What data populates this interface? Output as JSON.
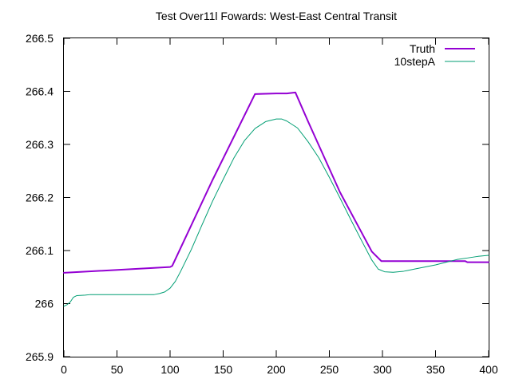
{
  "chart_data": {
    "type": "line",
    "title": "Test Over11l Fowards: West-East Central Transit",
    "xlabel": "",
    "ylabel": "",
    "xlim": [
      0,
      400
    ],
    "ylim": [
      265.9,
      266.5
    ],
    "x_ticks": [
      "0",
      "50",
      "100",
      "150",
      "200",
      "250",
      "300",
      "350",
      "400"
    ],
    "y_ticks": [
      "265.9",
      "266",
      "266.1",
      "266.2",
      "266.3",
      "266.4",
      "266.5"
    ],
    "grid": false,
    "legend_position": "top-right",
    "series": [
      {
        "name": "Truth",
        "color": "#9400d3",
        "points": [
          [
            0,
            266.058
          ],
          [
            100,
            266.069
          ],
          [
            102,
            266.071
          ],
          [
            140,
            266.233
          ],
          [
            180,
            266.395
          ],
          [
            200,
            266.396
          ],
          [
            210,
            266.396
          ],
          [
            218,
            266.398
          ],
          [
            230,
            266.343
          ],
          [
            260,
            266.21
          ],
          [
            290,
            266.098
          ],
          [
            299,
            266.08
          ],
          [
            340,
            266.08
          ],
          [
            378,
            266.08
          ],
          [
            380,
            266.078
          ],
          [
            400,
            266.078
          ]
        ]
      },
      {
        "name": "10stepA",
        "color": "#009e73",
        "points": [
          [
            0,
            265.995
          ],
          [
            3,
            265.998
          ],
          [
            6,
            266.003
          ],
          [
            9,
            266.012
          ],
          [
            12,
            266.015
          ],
          [
            20,
            266.016
          ],
          [
            25,
            266.017
          ],
          [
            40,
            266.017
          ],
          [
            60,
            266.017
          ],
          [
            85,
            266.017
          ],
          [
            90,
            266.019
          ],
          [
            95,
            266.022
          ],
          [
            100,
            266.029
          ],
          [
            105,
            266.042
          ],
          [
            110,
            266.061
          ],
          [
            120,
            266.102
          ],
          [
            130,
            266.148
          ],
          [
            140,
            266.193
          ],
          [
            150,
            266.234
          ],
          [
            160,
            266.274
          ],
          [
            170,
            266.307
          ],
          [
            180,
            266.33
          ],
          [
            190,
            266.343
          ],
          [
            200,
            266.348
          ],
          [
            205,
            266.348
          ],
          [
            210,
            266.344
          ],
          [
            220,
            266.331
          ],
          [
            230,
            266.305
          ],
          [
            240,
            266.275
          ],
          [
            250,
            266.238
          ],
          [
            260,
            266.199
          ],
          [
            270,
            266.159
          ],
          [
            280,
            266.12
          ],
          [
            290,
            266.082
          ],
          [
            296,
            266.065
          ],
          [
            302,
            266.06
          ],
          [
            310,
            266.059
          ],
          [
            320,
            266.061
          ],
          [
            330,
            266.065
          ],
          [
            340,
            266.069
          ],
          [
            350,
            266.073
          ],
          [
            360,
            266.078
          ],
          [
            370,
            266.083
          ],
          [
            380,
            266.086
          ],
          [
            390,
            266.089
          ],
          [
            400,
            266.091
          ]
        ]
      }
    ]
  }
}
